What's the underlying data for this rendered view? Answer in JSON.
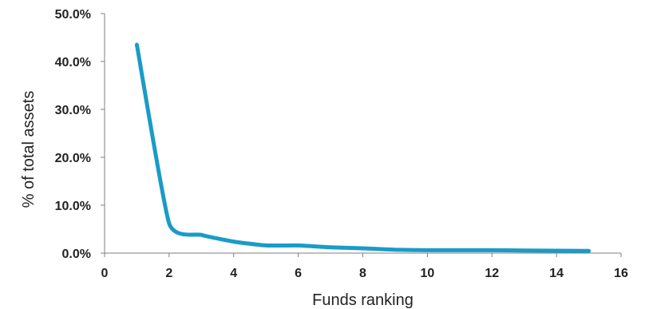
{
  "chart_data": {
    "type": "line",
    "title": "",
    "xlabel": "Funds ranking",
    "ylabel": "% of total assets",
    "xlim": [
      0,
      16
    ],
    "ylim": [
      0,
      50
    ],
    "x_ticks": [
      0,
      2,
      4,
      6,
      8,
      10,
      12,
      14,
      16
    ],
    "y_ticks": [
      0,
      10,
      20,
      30,
      40,
      50
    ],
    "y_tick_format": "percent_1dp",
    "grid": false,
    "legend": "none",
    "series": [
      {
        "color": "#1a9bc8",
        "x": [
          1,
          2,
          3,
          4,
          5,
          6,
          7,
          8,
          9,
          10,
          11,
          12,
          13,
          14,
          15
        ],
        "y": [
          43.5,
          6.2,
          3.8,
          2.4,
          1.6,
          1.6,
          1.2,
          1.0,
          0.7,
          0.6,
          0.6,
          0.6,
          0.55,
          0.5,
          0.45
        ]
      }
    ]
  }
}
